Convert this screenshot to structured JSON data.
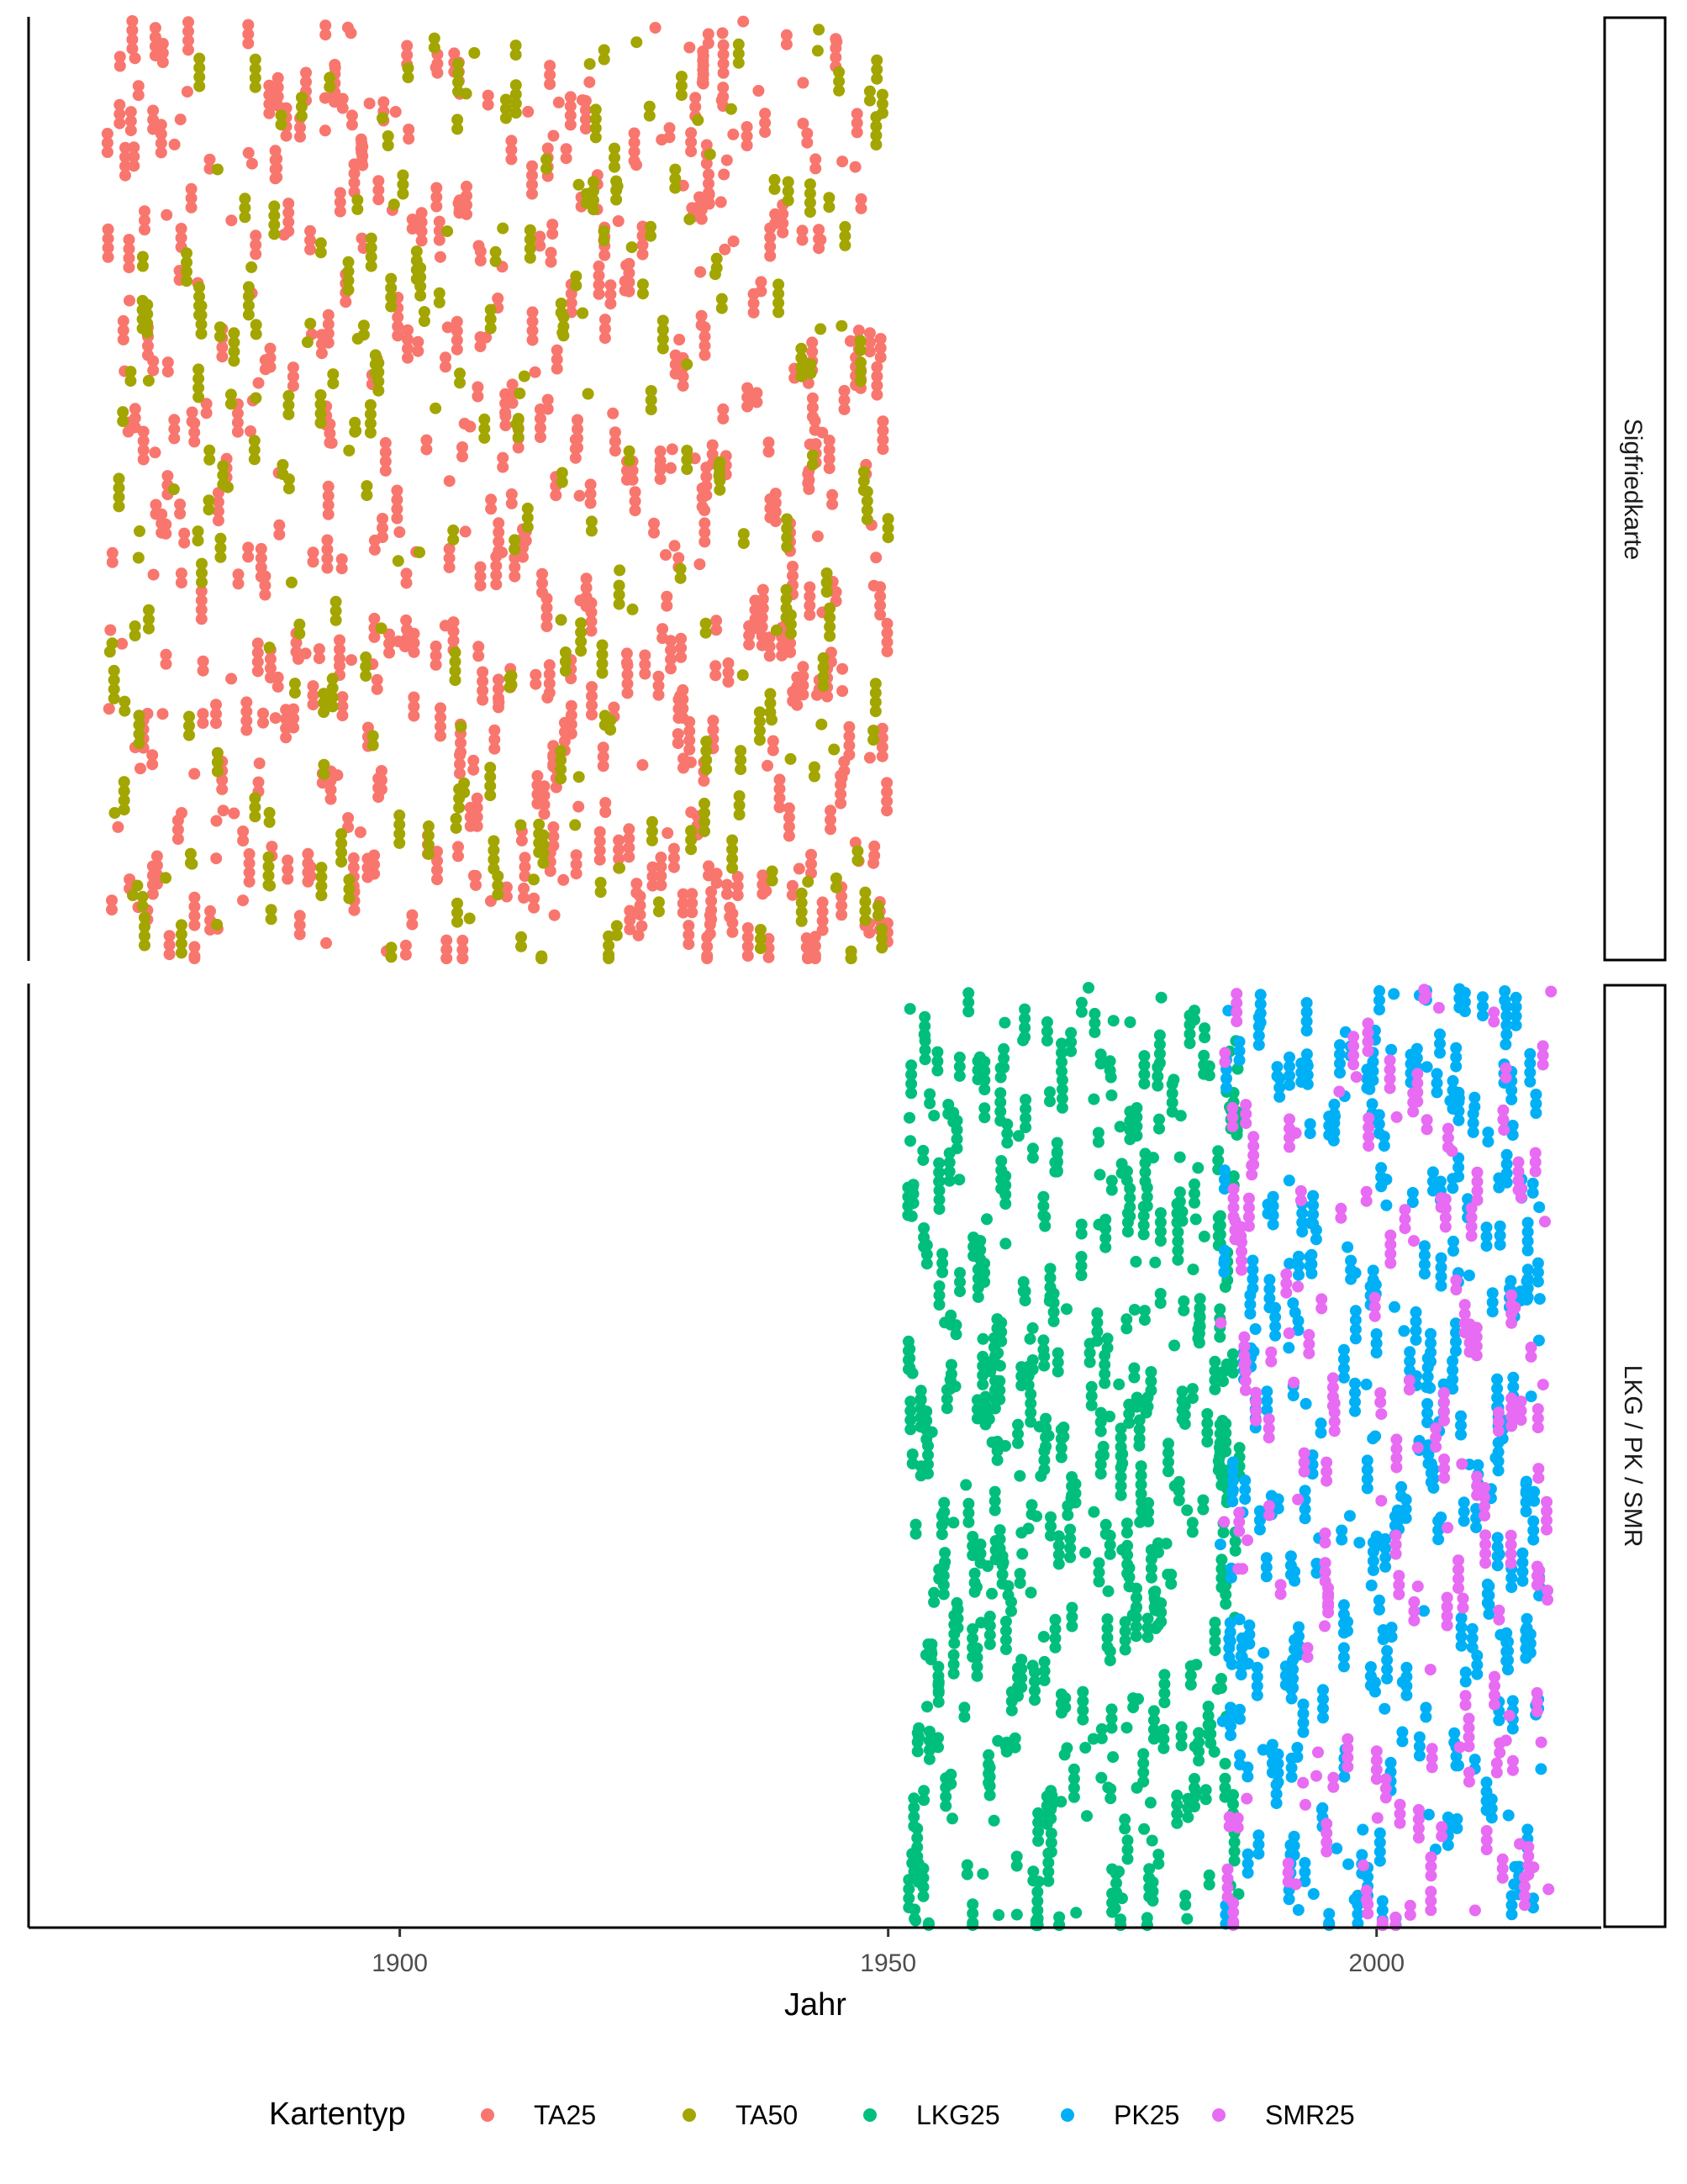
{
  "chart_data": {
    "type": "scatter",
    "title": "",
    "xlabel": "Jahr",
    "ylabel": "",
    "xlim": [
      1862,
      2023
    ],
    "x_ticks": [
      1900,
      1950,
      2000
    ],
    "grid": false,
    "legend_title": "Kartentyp",
    "legend_position": "bottom",
    "colors": {
      "TA25": "#F8766D",
      "TA50": "#A3A500",
      "LKG25": "#00BF7D",
      "PK25": "#00B0F6",
      "SMR25": "#E76BF3"
    },
    "legend": [
      {
        "name": "TA25",
        "color": "#F8766D"
      },
      {
        "name": "TA50",
        "color": "#A3A500"
      },
      {
        "name": "LKG25",
        "color": "#00BF7D"
      },
      {
        "name": "PK25",
        "color": "#00B0F6"
      },
      {
        "name": "SMR25",
        "color": "#E76BF3"
      }
    ],
    "panels": [
      {
        "strip_label": "Sigfriedkarte",
        "series": [
          {
            "name": "TA25",
            "x_range": [
              1870,
              1950
            ],
            "density": 1400
          },
          {
            "name": "TA50",
            "x_range": [
              1870,
              1950
            ],
            "density": 650
          }
        ]
      },
      {
        "strip_label": "LKG / PK / SMR",
        "series": [
          {
            "name": "LKG25",
            "x_range": [
              1952,
              1986
            ],
            "density": 1100
          },
          {
            "name": "PK25",
            "x_range": [
              1984,
              2017
            ],
            "density": 800
          },
          {
            "name": "SMR25",
            "x_range": [
              1984,
              2018
            ],
            "density": 420
          }
        ]
      }
    ]
  }
}
